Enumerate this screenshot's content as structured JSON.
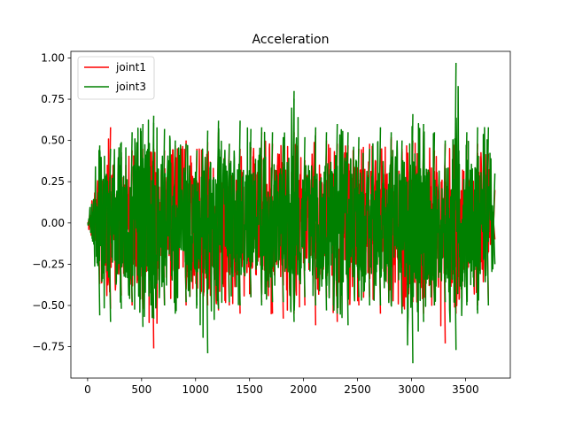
{
  "chart_data": {
    "type": "line",
    "title": "Acceleration",
    "xlabel": "",
    "ylabel": "",
    "xlim": [
      -155,
      3915
    ],
    "ylim": [
      -0.94,
      1.04
    ],
    "x_ticks": [
      0,
      500,
      1000,
      1500,
      2000,
      2500,
      3000,
      3500
    ],
    "x_tick_labels": [
      "0",
      "500",
      "1000",
      "1500",
      "2000",
      "2500",
      "3000",
      "3500"
    ],
    "y_ticks": [
      -0.75,
      -0.5,
      -0.25,
      0.0,
      0.25,
      0.5,
      0.75,
      1.0
    ],
    "y_tick_labels": [
      "−0.75",
      "−0.50",
      "−0.25",
      "0.00",
      "0.25",
      "0.50",
      "0.75",
      "1.00"
    ],
    "grid": false,
    "legend_position": "top-left",
    "x_range": [
      0,
      3760
    ],
    "series": [
      {
        "name": "joint1",
        "color": "#ff0000",
        "x": [
          0,
          100,
          200,
          300,
          400,
          500,
          600,
          700,
          800,
          900,
          1000,
          1100,
          1200,
          1300,
          1400,
          1500,
          1600,
          1700,
          1800,
          1900,
          2000,
          2100,
          2200,
          2300,
          2400,
          2500,
          2600,
          2700,
          2800,
          2900,
          3000,
          3100,
          3200,
          3300,
          3400,
          3500,
          3600,
          3700,
          3760
        ],
        "upper_envelope": [
          0.0,
          0.35,
          0.58,
          0.4,
          0.44,
          0.45,
          0.45,
          0.44,
          0.47,
          0.5,
          0.45,
          0.49,
          0.55,
          0.48,
          0.45,
          0.46,
          0.55,
          0.48,
          0.47,
          0.55,
          0.38,
          0.55,
          0.5,
          0.48,
          0.47,
          0.45,
          0.48,
          0.45,
          0.52,
          0.45,
          0.5,
          0.55,
          0.44,
          0.48,
          0.48,
          0.5,
          0.48,
          0.42,
          0.2
        ],
        "lower_envelope": [
          0.0,
          -0.37,
          -0.52,
          -0.44,
          -0.5,
          -0.52,
          -0.76,
          -0.5,
          -0.52,
          -0.5,
          -0.45,
          -0.5,
          -0.53,
          -0.5,
          -0.55,
          -0.45,
          -0.48,
          -0.55,
          -0.58,
          -0.55,
          -0.5,
          -0.62,
          -0.45,
          -0.6,
          -0.5,
          -0.5,
          -0.45,
          -0.55,
          -0.5,
          -0.55,
          -0.48,
          -0.55,
          -0.5,
          -0.73,
          -0.55,
          -0.4,
          -0.5,
          -0.5,
          -0.1
        ]
      },
      {
        "name": "joint3",
        "color": "#008000",
        "x": [
          0,
          100,
          200,
          300,
          400,
          500,
          600,
          700,
          800,
          900,
          1000,
          1100,
          1200,
          1300,
          1400,
          1500,
          1600,
          1700,
          1800,
          1900,
          2000,
          2100,
          2200,
          2300,
          2400,
          2500,
          2600,
          2700,
          2800,
          2900,
          3000,
          3100,
          3200,
          3300,
          3400,
          3500,
          3600,
          3700,
          3760
        ],
        "upper_envelope": [
          0.0,
          0.47,
          0.45,
          0.49,
          0.55,
          0.6,
          0.65,
          0.57,
          0.5,
          0.48,
          0.44,
          0.56,
          0.62,
          0.48,
          0.62,
          0.57,
          0.58,
          0.55,
          0.52,
          0.8,
          0.52,
          0.58,
          0.55,
          0.6,
          0.55,
          0.52,
          0.45,
          0.58,
          0.55,
          0.5,
          0.66,
          0.6,
          0.55,
          0.5,
          0.97,
          0.55,
          0.58,
          0.58,
          0.3
        ],
        "lower_envelope": [
          0.0,
          -0.56,
          -0.6,
          -0.52,
          -0.48,
          -0.63,
          -0.58,
          -0.5,
          -0.55,
          -0.48,
          -0.5,
          -0.79,
          -0.52,
          -0.48,
          -0.5,
          -0.45,
          -0.5,
          -0.48,
          -0.48,
          -0.6,
          -0.45,
          -0.5,
          -0.53,
          -0.55,
          -0.62,
          -0.45,
          -0.5,
          -0.5,
          -0.5,
          -0.55,
          -0.85,
          -0.6,
          -0.5,
          -0.48,
          -0.77,
          -0.5,
          -0.55,
          -0.5,
          -0.25
        ]
      }
    ]
  }
}
